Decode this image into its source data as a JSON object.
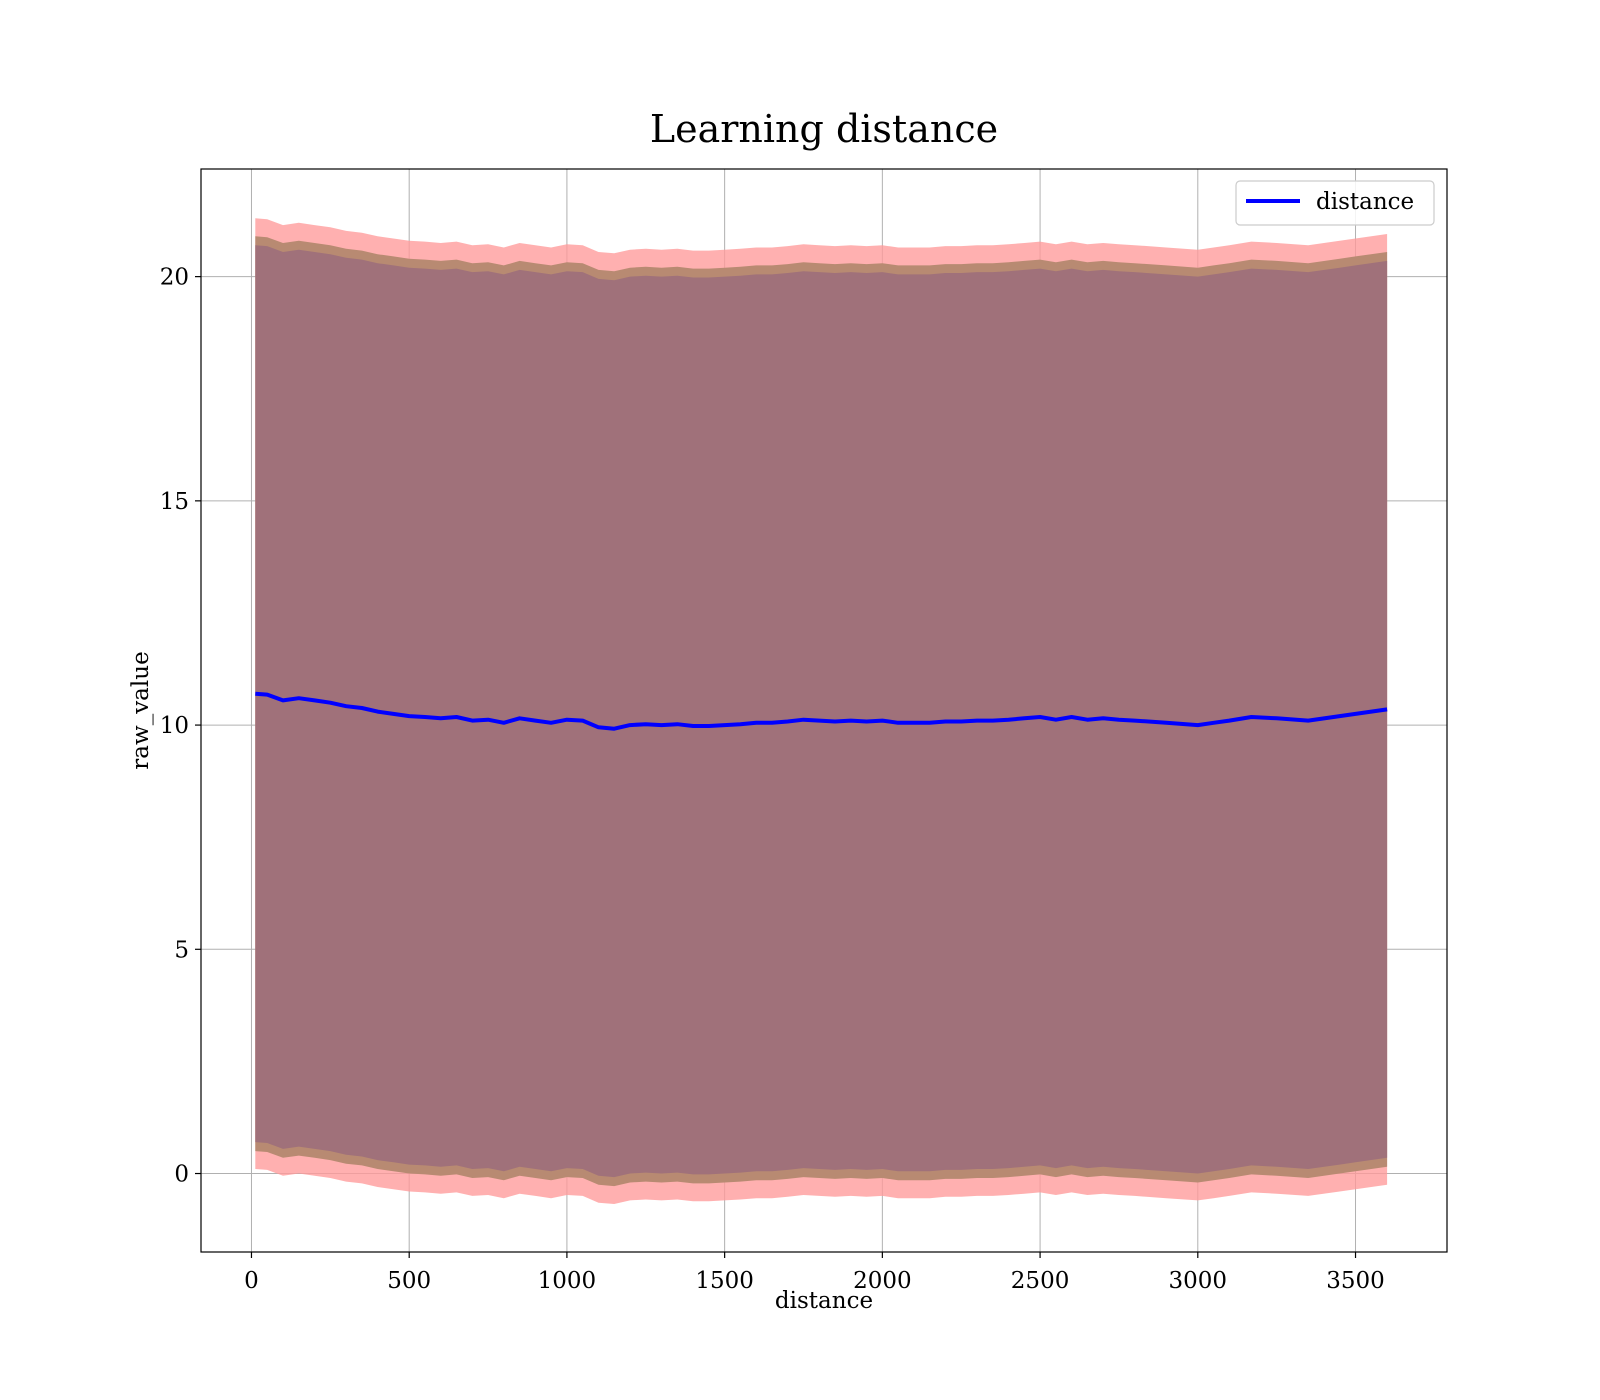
{
  "chart_data": {
    "type": "line",
    "title": "Learning distance",
    "xlabel": "distance",
    "ylabel": "raw_value",
    "xlim": [
      -160,
      3790
    ],
    "ylim": [
      -1.75,
      22.4
    ],
    "xticks": [
      0,
      500,
      1000,
      1500,
      2000,
      2500,
      3000,
      3500
    ],
    "yticks": [
      0,
      5,
      10,
      15,
      20
    ],
    "grid": true,
    "legend": {
      "position": "top-right",
      "entries": [
        "distance"
      ]
    },
    "colors": {
      "line": "#0000ff",
      "band_outer": "#ff9a9a",
      "band_middle": "#b88a72",
      "band_inner": "#a0717a",
      "grid": "#b0b0b0"
    },
    "series": [
      {
        "name": "distance",
        "x": [
          12,
          50,
          100,
          150,
          200,
          250,
          300,
          350,
          400,
          450,
          500,
          550,
          600,
          650,
          700,
          750,
          800,
          850,
          900,
          950,
          1000,
          1050,
          1100,
          1150,
          1200,
          1250,
          1300,
          1350,
          1400,
          1450,
          1500,
          1550,
          1600,
          1650,
          1700,
          1750,
          1800,
          1850,
          1900,
          1950,
          2000,
          2050,
          2100,
          2150,
          2200,
          2250,
          2300,
          2350,
          2400,
          2450,
          2500,
          2550,
          2600,
          2650,
          2700,
          2750,
          2800,
          2900,
          3000,
          3050,
          3100,
          3170,
          3250,
          3350,
          3450,
          3500,
          3600
        ],
        "values": [
          10.7,
          10.68,
          10.55,
          10.6,
          10.55,
          10.5,
          10.42,
          10.38,
          10.3,
          10.25,
          10.2,
          10.18,
          10.15,
          10.18,
          10.1,
          10.12,
          10.05,
          10.15,
          10.1,
          10.05,
          10.12,
          10.1,
          9.95,
          9.92,
          10.0,
          10.02,
          10.0,
          10.02,
          9.98,
          9.98,
          10.0,
          10.02,
          10.05,
          10.05,
          10.08,
          10.12,
          10.1,
          10.08,
          10.1,
          10.08,
          10.1,
          10.05,
          10.05,
          10.05,
          10.08,
          10.08,
          10.1,
          10.1,
          10.12,
          10.15,
          10.18,
          10.12,
          10.18,
          10.12,
          10.15,
          10.12,
          10.1,
          10.05,
          10.0,
          10.05,
          10.1,
          10.18,
          10.15,
          10.1,
          10.2,
          10.25,
          10.35
        ]
      }
    ],
    "bands": [
      {
        "name": "outer",
        "offset_upper": 10.6,
        "offset_lower": 10.6
      },
      {
        "name": "middle",
        "offset_upper": 10.2,
        "offset_lower": 10.2
      },
      {
        "name": "inner",
        "offset_upper": 10.0,
        "offset_lower": 10.0
      }
    ]
  }
}
